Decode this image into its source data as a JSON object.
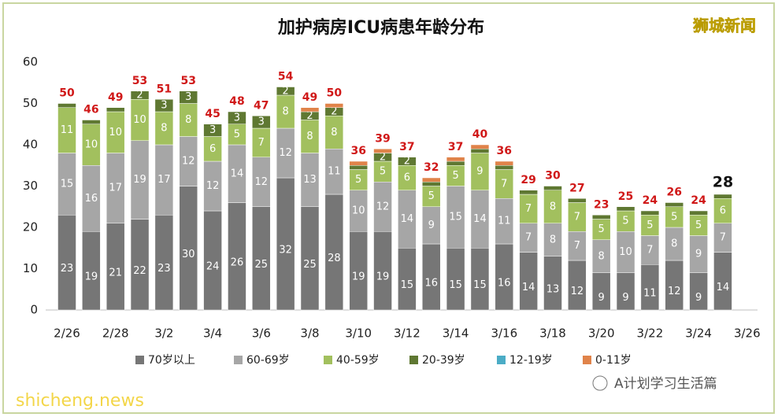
{
  "chart_data": {
    "type": "stacked-bar",
    "title": "加护病房ICU病患年龄分布",
    "watermark": "狮城新闻",
    "footer_right": "A计划学习生活篇",
    "footer_left": "shicheng.news",
    "categories": [
      "2/26",
      null,
      "2/28",
      null,
      "3/2",
      null,
      "3/4",
      null,
      "3/6",
      null,
      "3/8",
      null,
      "3/10",
      null,
      "3/12",
      null,
      "3/14",
      null,
      "3/16",
      null,
      "3/18",
      null,
      "3/20",
      null,
      "3/22",
      null,
      "3/24",
      null,
      "3/26"
    ],
    "series": [
      {
        "name": "70岁以上",
        "color": "#767676",
        "values": [
          23,
          19,
          21,
          22,
          23,
          30,
          24,
          26,
          25,
          32,
          25,
          28,
          19,
          19,
          15,
          16,
          15,
          15,
          16,
          14,
          13,
          12,
          9,
          9,
          11,
          12,
          9,
          14,
          null
        ]
      },
      {
        "name": "60-69岁",
        "color": "#a6a6a6",
        "values": [
          15,
          16,
          17,
          19,
          17,
          12,
          12,
          14,
          12,
          12,
          13,
          11,
          10,
          12,
          14,
          9,
          15,
          14,
          11,
          7,
          8,
          7,
          8,
          10,
          7,
          8,
          9,
          7,
          null
        ]
      },
      {
        "name": "40-59岁",
        "color": "#a2c05e",
        "values": [
          11,
          10,
          10,
          10,
          8,
          8,
          6,
          5,
          7,
          8,
          8,
          8,
          5,
          5,
          6,
          5,
          5,
          9,
          7,
          7,
          8,
          7,
          5,
          5,
          5,
          5,
          5,
          6,
          null
        ]
      },
      {
        "name": "20-39岁",
        "color": "#5f7832",
        "values": [
          1,
          1,
          1,
          2,
          3,
          3,
          3,
          3,
          3,
          2,
          2,
          2,
          1,
          2,
          2,
          1,
          1,
          1,
          1,
          1,
          1,
          1,
          1,
          1,
          1,
          1,
          1,
          1,
          null
        ]
      },
      {
        "name": "12-19岁",
        "color": "#4bacc6",
        "values": [
          0,
          0,
          0,
          0,
          0,
          0,
          0,
          0,
          0,
          0,
          0,
          0,
          0,
          0,
          0,
          0,
          0,
          0,
          0,
          0,
          0,
          0,
          0,
          0,
          0,
          0,
          0,
          0,
          null
        ]
      },
      {
        "name": "0-11岁",
        "color": "#e0834a",
        "values": [
          0,
          0,
          0,
          0,
          0,
          0,
          0,
          0,
          0,
          0,
          1,
          1,
          1,
          1,
          0,
          1,
          1,
          1,
          1,
          0,
          0,
          0,
          0,
          0,
          0,
          0,
          0,
          0,
          null
        ]
      }
    ],
    "totals": [
      50,
      46,
      49,
      53,
      51,
      53,
      45,
      48,
      47,
      54,
      49,
      50,
      36,
      39,
      37,
      32,
      37,
      40,
      36,
      29,
      30,
      27,
      23,
      25,
      24,
      26,
      24,
      28,
      null
    ],
    "ylim": [
      0,
      60
    ],
    "yticks": [
      0,
      10,
      20,
      30,
      40,
      50,
      60
    ]
  }
}
